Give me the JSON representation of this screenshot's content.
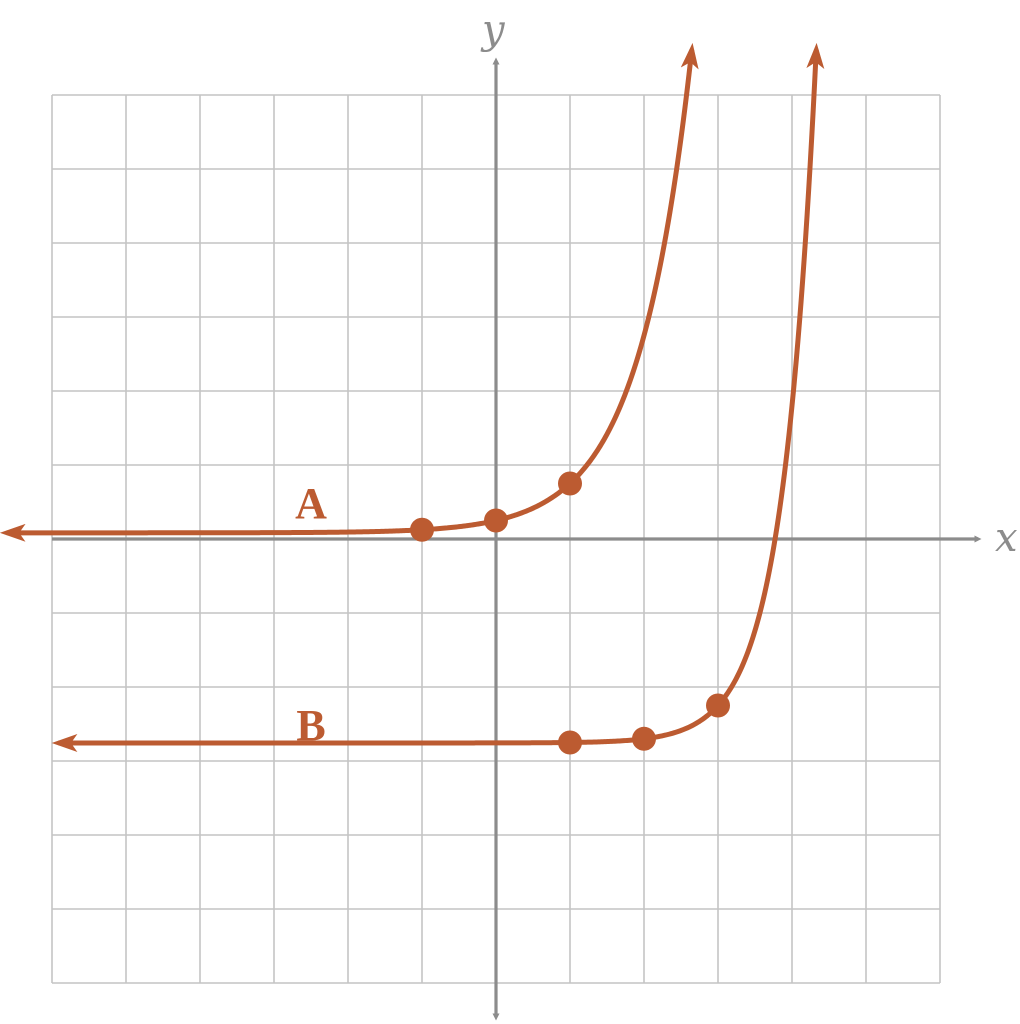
{
  "chart_data": {
    "type": "line",
    "xlabel": "x",
    "ylabel": "y",
    "xlim": [
      -6,
      6
    ],
    "ylim": [
      -6,
      6
    ],
    "grid": true,
    "colors": {
      "curve": "#bc5b31",
      "axis": "#8c8c8c",
      "grid": "#c4c4c4"
    },
    "series": [
      {
        "name": "A",
        "label_at": [
          -2.5,
          0.5
        ],
        "curve_x_range": [
          -6.6,
          2.8
        ],
        "arrow_left": true,
        "arrow_up": true,
        "points": [
          [
            -1,
            0.125
          ],
          [
            0,
            0.25
          ],
          [
            1,
            0.75
          ]
        ]
      },
      {
        "name": "B",
        "label_at": [
          -2.5,
          -2.5
        ],
        "curve_x_range": [
          -5.9,
          5.3
        ],
        "arrow_left": true,
        "arrow_up": true,
        "points": [
          [
            1,
            -2.75
          ],
          [
            2,
            -2.7
          ],
          [
            3,
            -2.25
          ]
        ]
      }
    ]
  }
}
